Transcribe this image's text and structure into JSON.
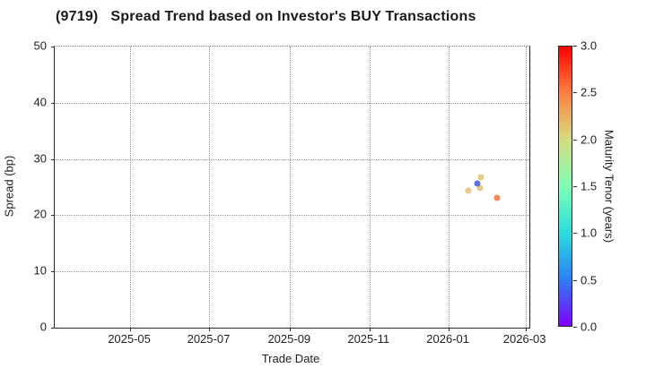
{
  "title": "(9719)   Spread Trend based on Investor's BUY Transactions",
  "chart_data": {
    "type": "scatter",
    "title": "(9719)   Spread Trend based on Investor's BUY Transactions",
    "xlabel": "Trade Date",
    "ylabel": "Spread (bp)",
    "x_domain": [
      "2025-03-04",
      "2026-03-04"
    ],
    "ylim": [
      0,
      50
    ],
    "grid": true,
    "y_ticks": [
      0,
      10,
      20,
      30,
      40,
      50
    ],
    "x_ticks": [
      {
        "date": "2025-05-01",
        "label": "2025-05"
      },
      {
        "date": "2025-07-01",
        "label": "2025-07"
      },
      {
        "date": "2025-09-01",
        "label": "2025-09"
      },
      {
        "date": "2025-11-01",
        "label": "2025-11"
      },
      {
        "date": "2026-01-01",
        "label": "2026-01"
      },
      {
        "date": "2026-03-01",
        "label": "2026-03"
      }
    ],
    "points": [
      {
        "date": "2026-01-16",
        "spread": 24.4,
        "maturity_tenor_years": 2.1,
        "color": "#e3c474"
      },
      {
        "date": "2026-01-25",
        "spread": 24.8,
        "maturity_tenor_years": 2.1,
        "color": "#e3c474"
      },
      {
        "date": "2026-01-26",
        "spread": 26.7,
        "maturity_tenor_years": 2.15,
        "color": "#e3c474"
      },
      {
        "date": "2026-01-23",
        "spread": 25.6,
        "maturity_tenor_years": 0.45,
        "color": "#4660e2"
      },
      {
        "date": "2026-02-07",
        "spread": 23.1,
        "maturity_tenor_years": 2.5,
        "color": "#f3793e"
      }
    ],
    "colorbar": {
      "label": "Maturity Tenor (years)",
      "min": 0.0,
      "max": 3.0,
      "tick_labels": [
        "3.0",
        "2.5",
        "2.0",
        "1.5",
        "1.0",
        "0.5",
        "0.0"
      ],
      "tick_values": [
        3.0,
        2.5,
        2.0,
        1.5,
        1.0,
        0.5,
        0.0
      ],
      "gradient_stops": [
        {
          "pos": 0.0,
          "color": "#8000ff"
        },
        {
          "pos": 0.1667,
          "color": "#2b80f6"
        },
        {
          "pos": 0.3333,
          "color": "#2bdddd"
        },
        {
          "pos": 0.5,
          "color": "#80ffb4"
        },
        {
          "pos": 0.6667,
          "color": "#d5dd80"
        },
        {
          "pos": 0.8333,
          "color": "#ff8042"
        },
        {
          "pos": 1.0,
          "color": "#ff0000"
        }
      ]
    }
  }
}
